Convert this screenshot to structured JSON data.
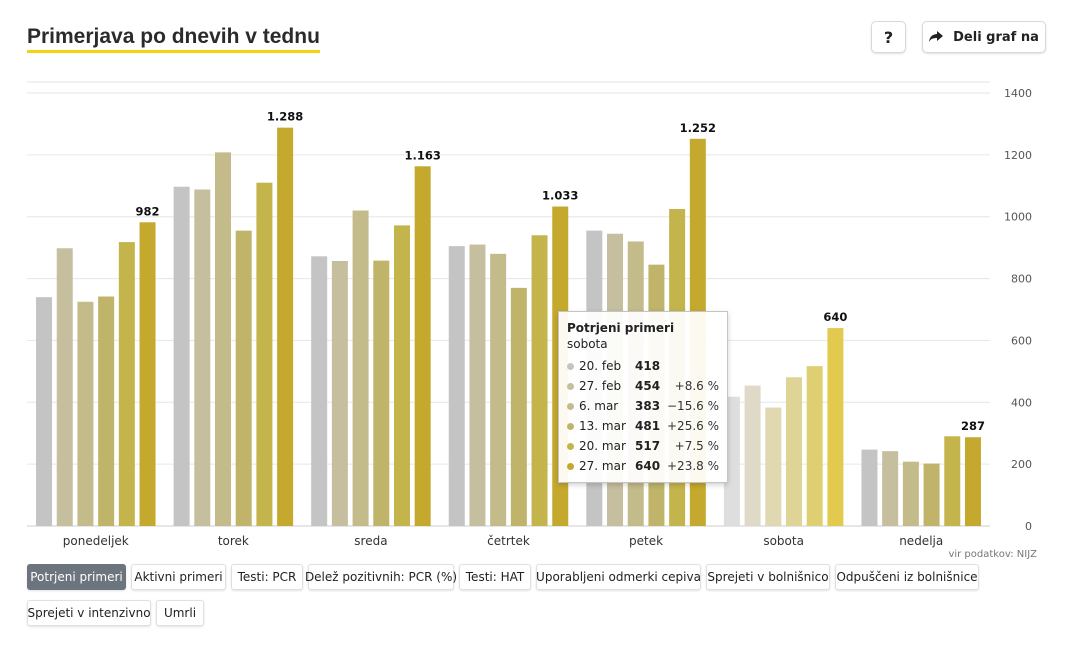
{
  "header": {
    "title": "Primerjava po dnevih v tednu",
    "help_label": "?",
    "share_label": "Deli graf na",
    "help_icon": "question-icon",
    "share_icon": "share-arrow-icon"
  },
  "source": "vir podatkov: NIJZ",
  "tabs": [
    {
      "label": "Potrjeni primeri",
      "active": true
    },
    {
      "label": "Aktivni primeri",
      "active": false
    },
    {
      "label": "Testi: PCR",
      "active": false
    },
    {
      "label": "Delež pozitivnih: PCR (%)",
      "active": false
    },
    {
      "label": "Testi: HAT",
      "active": false
    },
    {
      "label": "Uporabljeni odmerki cepiva",
      "active": false
    },
    {
      "label": "Sprejeti v bolnišnico",
      "active": false
    },
    {
      "label": "Odpuščeni iz bolnišnice",
      "active": false
    },
    {
      "label": "Sprejeti v intenzivno",
      "active": false
    },
    {
      "label": "Umrli",
      "active": false
    }
  ],
  "tooltip": {
    "title": "Potrjeni primeri",
    "subtitle": "sobota",
    "rows": [
      {
        "date": "20. feb",
        "value": "418",
        "change": ""
      },
      {
        "date": "27. feb",
        "value": "454",
        "change": "+8.6 %"
      },
      {
        "date": "6. mar",
        "value": "383",
        "change": "−15.6 %"
      },
      {
        "date": "13. mar",
        "value": "481",
        "change": "+25.6 %"
      },
      {
        "date": "20. mar",
        "value": "517",
        "change": "+7.5 %"
      },
      {
        "date": "27. mar",
        "value": "640",
        "change": "+23.8 %"
      }
    ]
  },
  "chart_data": {
    "type": "bar",
    "title": "Primerjava po dnevih v tednu",
    "categories": [
      "ponedeljek",
      "torek",
      "sreda",
      "četrtek",
      "petek",
      "sobota",
      "nedelja"
    ],
    "series": [
      {
        "name": "20. feb",
        "color": "#c4c4c4",
        "values": [
          740,
          1097,
          872,
          905,
          955,
          418,
          247
        ]
      },
      {
        "name": "27. feb",
        "color": "#c5be9f",
        "values": [
          898,
          1088,
          857,
          910,
          945,
          454,
          242
        ]
      },
      {
        "name": "6. mar",
        "color": "#c4bb8a",
        "values": [
          725,
          1208,
          1020,
          880,
          920,
          383,
          208
        ]
      },
      {
        "name": "13. mar",
        "color": "#c0b46a",
        "values": [
          742,
          955,
          858,
          770,
          845,
          481,
          202
        ]
      },
      {
        "name": "20. mar",
        "color": "#c4b44c",
        "values": [
          918,
          1110,
          972,
          940,
          1025,
          517,
          290
        ]
      },
      {
        "name": "27. mar",
        "color": "#c5a92e",
        "values": [
          982,
          1288,
          1163,
          1033,
          1252,
          640,
          287
        ]
      }
    ],
    "highlight_category": "sobota",
    "value_labels": [
      "982",
      "1.288",
      "1.163",
      "1.033",
      "1.252",
      "640",
      "287"
    ],
    "y_ticks": [
      0,
      200,
      400,
      600,
      800,
      1000,
      1200,
      1400
    ],
    "ylim": [
      0,
      1400
    ],
    "grid": true,
    "y_axis_side": "right"
  }
}
